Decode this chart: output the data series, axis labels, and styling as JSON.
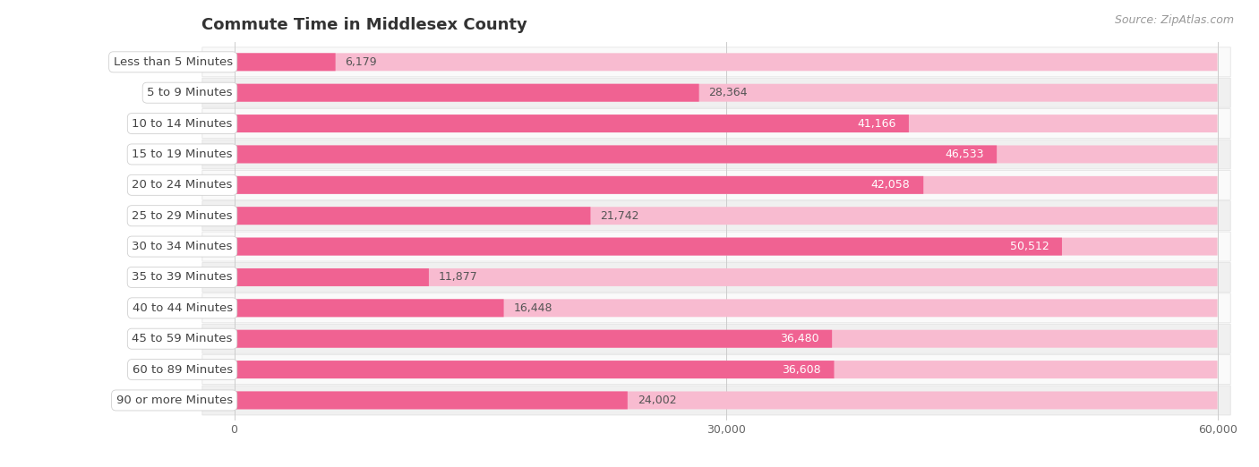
{
  "title": "Commute Time in Middlesex County",
  "source": "Source: ZipAtlas.com",
  "categories": [
    "Less than 5 Minutes",
    "5 to 9 Minutes",
    "10 to 14 Minutes",
    "15 to 19 Minutes",
    "20 to 24 Minutes",
    "25 to 29 Minutes",
    "30 to 34 Minutes",
    "35 to 39 Minutes",
    "40 to 44 Minutes",
    "45 to 59 Minutes",
    "60 to 89 Minutes",
    "90 or more Minutes"
  ],
  "values": [
    6179,
    28364,
    41166,
    46533,
    42058,
    21742,
    50512,
    11877,
    16448,
    36480,
    36608,
    24002
  ],
  "xlim_max": 60000,
  "xticks": [
    0,
    30000,
    60000
  ],
  "xtick_labels": [
    "0",
    "30,000",
    "60,000"
  ],
  "bar_color": "#f06292",
  "bar_bg_color": "#f8bbd0",
  "row_bg_even": "#f0f0f0",
  "row_bg_odd": "#fafafa",
  "label_fg": "#444444",
  "title_color": "#333333",
  "title_fontsize": 13,
  "label_fontsize": 9.5,
  "value_fontsize": 9,
  "source_fontsize": 9,
  "source_color": "#999999",
  "grid_color": "#cccccc",
  "value_inside_color": "#ffffff",
  "value_outside_color": "#555555"
}
